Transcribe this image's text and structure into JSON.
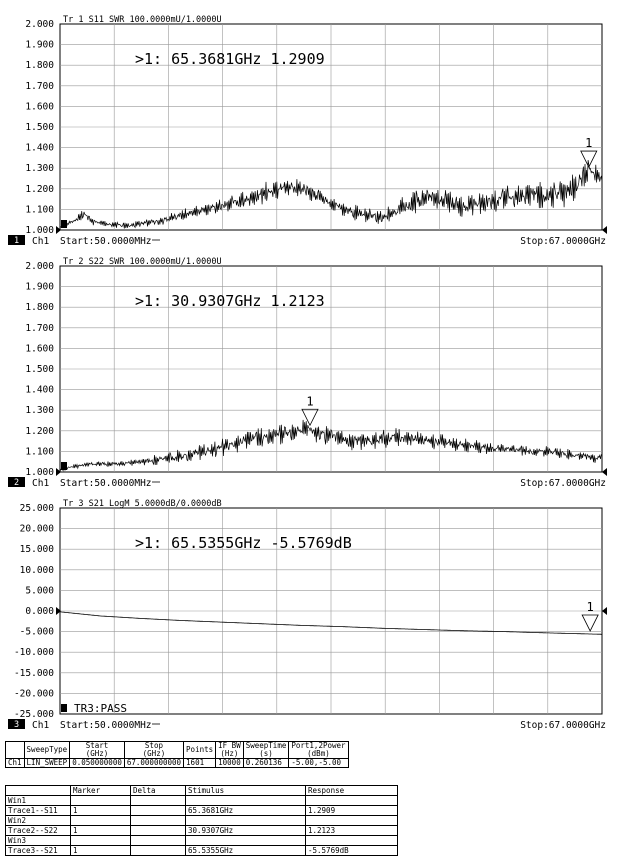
{
  "panels": [
    {
      "trace_title": "Tr 1  S11 SWR 100.0000mU/1.0000U",
      "marker_readout": ">1:   65.3681GHz  1.2909",
      "marker_label": "1",
      "channel_num": "1",
      "channel_label": "Ch1",
      "start_label": "Start:50.0000MHz",
      "stop_label": "Stop:67.0000GHz",
      "status_text": "",
      "chart_data": {
        "type": "line",
        "xlim": [
          0.05,
          67.0
        ],
        "ylim": [
          1.0,
          2.0
        ],
        "yticks": [
          "2.000",
          "1.900",
          "1.800",
          "1.700",
          "1.600",
          "1.500",
          "1.400",
          "1.300",
          "1.200",
          "1.100",
          "1.000"
        ],
        "marker": {
          "x": 65.3681,
          "y": 1.2909
        },
        "series": [
          {
            "x": [
              0.05,
              2,
              3,
              4,
              6,
              8,
              10,
              12,
              14,
              16,
              18,
              20,
              22,
              24,
              26,
              28,
              30,
              32,
              34,
              36,
              38,
              40,
              42,
              44,
              46,
              48,
              50,
              52,
              54,
              56,
              58,
              60,
              62,
              64,
              65.37,
              67
            ],
            "y": [
              1.01,
              1.05,
              1.08,
              1.04,
              1.03,
              1.02,
              1.03,
              1.04,
              1.06,
              1.08,
              1.1,
              1.12,
              1.14,
              1.16,
              1.19,
              1.21,
              1.2,
              1.16,
              1.12,
              1.09,
              1.07,
              1.06,
              1.1,
              1.14,
              1.16,
              1.14,
              1.11,
              1.13,
              1.15,
              1.16,
              1.17,
              1.17,
              1.18,
              1.22,
              1.29,
              1.26
            ],
            "spread": [
              0.005,
              0.01,
              0.02,
              0.015,
              0.01,
              0.012,
              0.012,
              0.015,
              0.02,
              0.025,
              0.025,
              0.03,
              0.035,
              0.04,
              0.04,
              0.04,
              0.04,
              0.035,
              0.03,
              0.03,
              0.03,
              0.03,
              0.04,
              0.05,
              0.05,
              0.05,
              0.04,
              0.04,
              0.05,
              0.05,
              0.05,
              0.05,
              0.06,
              0.06,
              0.05,
              0.04
            ]
          }
        ]
      }
    },
    {
      "trace_title": "Tr 2  S22 SWR 100.0000mU/1.0000U",
      "marker_readout": ">1:   30.9307GHz  1.2123",
      "marker_label": "1",
      "channel_num": "2",
      "channel_label": "Ch1",
      "start_label": "Start:50.0000MHz",
      "stop_label": "Stop:67.0000GHz",
      "status_text": "",
      "chart_data": {
        "type": "line",
        "xlim": [
          0.05,
          67.0
        ],
        "ylim": [
          1.0,
          2.0
        ],
        "yticks": [
          "2.000",
          "1.900",
          "1.800",
          "1.700",
          "1.600",
          "1.500",
          "1.400",
          "1.300",
          "1.200",
          "1.100",
          "1.000"
        ],
        "marker": {
          "x": 30.9307,
          "y": 1.2123
        },
        "series": [
          {
            "x": [
              0.05,
              2,
              4,
              6,
              8,
              10,
              12,
              14,
              16,
              18,
              20,
              22,
              24,
              26,
              28,
              30,
              30.93,
              32,
              34,
              36,
              38,
              40,
              42,
              44,
              46,
              48,
              50,
              52,
              54,
              56,
              58,
              60,
              62,
              64,
              66,
              67
            ],
            "y": [
              1.01,
              1.03,
              1.04,
              1.04,
              1.04,
              1.05,
              1.06,
              1.07,
              1.08,
              1.1,
              1.12,
              1.14,
              1.16,
              1.18,
              1.19,
              1.2,
              1.21,
              1.19,
              1.17,
              1.15,
              1.15,
              1.16,
              1.17,
              1.16,
              1.15,
              1.14,
              1.13,
              1.12,
              1.11,
              1.11,
              1.1,
              1.1,
              1.09,
              1.08,
              1.07,
              1.07
            ],
            "spread": [
              0.005,
              0.01,
              0.01,
              0.01,
              0.012,
              0.015,
              0.02,
              0.025,
              0.03,
              0.03,
              0.035,
              0.035,
              0.04,
              0.04,
              0.04,
              0.04,
              0.04,
              0.04,
              0.035,
              0.035,
              0.035,
              0.035,
              0.035,
              0.03,
              0.03,
              0.03,
              0.025,
              0.025,
              0.02,
              0.02,
              0.02,
              0.02,
              0.02,
              0.02,
              0.02,
              0.02
            ]
          }
        ]
      }
    },
    {
      "trace_title": "Tr 3  S21 LogM 5.0000dB/0.0000dB",
      "marker_readout": ">1:   65.5355GHz  -5.5769dB",
      "marker_label": "1",
      "channel_num": "3",
      "channel_label": "Ch1",
      "start_label": "Start:50.0000MHz",
      "stop_label": "Stop:67.0000GHz",
      "status_text": "TR3:PASS",
      "chart_data": {
        "type": "line",
        "xlim": [
          0.05,
          67.0
        ],
        "ylim": [
          -25.0,
          25.0
        ],
        "yticks": [
          "25.000",
          "20.000",
          "15.000",
          "10.000",
          "5.000",
          "0.000",
          "-5.000",
          "-10.000",
          "-15.000",
          "-20.000",
          "-25.000"
        ],
        "marker": {
          "x": 65.5355,
          "y": -5.5769
        },
        "series": [
          {
            "x": [
              0.05,
              5,
              10,
              15,
              20,
              25,
              30,
              35,
              40,
              45,
              50,
              55,
              60,
              65.54,
              67
            ],
            "y": [
              -0.2,
              -1.2,
              -1.8,
              -2.3,
              -2.7,
              -3.1,
              -3.5,
              -3.8,
              -4.2,
              -4.5,
              -4.8,
              -5.0,
              -5.3,
              -5.58,
              -5.65
            ],
            "spread": [
              0,
              0,
              0,
              0,
              0,
              0,
              0,
              0,
              0,
              0,
              0,
              0,
              0,
              0,
              0
            ]
          }
        ]
      }
    }
  ],
  "settings_table": {
    "headers": [
      "",
      "SweepType",
      "Start\n(GHz)",
      "Stop\n(GHz)",
      "Points",
      "IF BW\n(Hz)",
      "SweepTime\n(s)",
      "Port1,2Power\n(dBm)"
    ],
    "row": [
      "Ch1",
      "LIN_SWEEP",
      "0.050000000",
      "67.000000000",
      "1601",
      "10000",
      "0.260136",
      "-5.00,-5.00"
    ]
  },
  "marker_table": {
    "headers": [
      "",
      "Marker",
      "Delta",
      "Stimulus",
      "Response"
    ],
    "rows": [
      [
        "Win1",
        "",
        "",
        "",
        ""
      ],
      [
        "Trace1--S11",
        "1",
        "",
        "65.3681GHz",
        "1.2909"
      ],
      [
        "Win2",
        "",
        "",
        "",
        ""
      ],
      [
        "Trace2--S22",
        "1",
        "",
        "30.9307GHz",
        "1.2123"
      ],
      [
        "Win3",
        "",
        "",
        "",
        ""
      ],
      [
        "Trace3--S21",
        "1",
        "",
        "65.5355GHz",
        "-5.5769dB"
      ]
    ]
  }
}
